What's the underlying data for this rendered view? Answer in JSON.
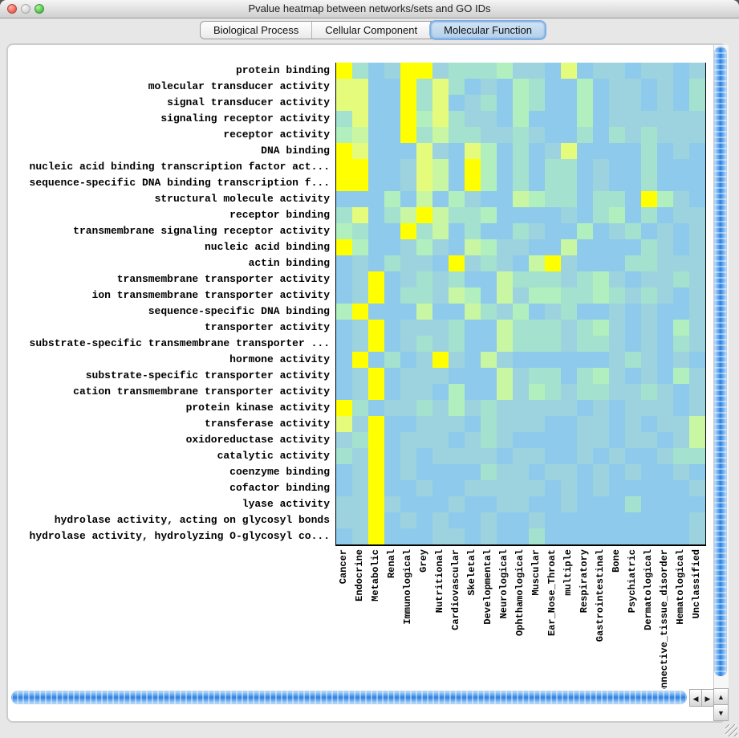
{
  "window": {
    "title": "Pvalue heatmap between networks/sets and GO IDs"
  },
  "tabs": {
    "items": [
      {
        "label": "Biological Process",
        "selected": false
      },
      {
        "label": "Cellular Component",
        "selected": false
      },
      {
        "label": "Molecular Function",
        "selected": true
      }
    ]
  },
  "chart_data": {
    "type": "heatmap",
    "rows": [
      "protein binding",
      "molecular transducer activity",
      "signal transducer activity",
      "signaling receptor activity",
      "receptor activity",
      "DNA binding",
      "nucleic acid binding transcription factor act...",
      "sequence-specific DNA binding transcription f...",
      "structural molecule activity",
      "receptor binding",
      "transmembrane signaling receptor activity",
      "nucleic acid binding",
      "actin binding",
      "transmembrane transporter activity",
      "ion transmembrane transporter activity",
      "sequence-specific DNA binding",
      "transporter activity",
      "substrate-specific transmembrane transporter ...",
      "hormone activity",
      "substrate-specific transporter activity",
      "cation transmembrane transporter activity",
      "protein kinase activity",
      "transferase activity",
      "oxidoreductase activity",
      "catalytic activity",
      "coenzyme binding",
      "cofactor binding",
      "lyase activity",
      "hydrolase activity, acting on glycosyl bonds",
      "hydrolase activity, hydrolyzing O-glycosyl co..."
    ],
    "columns": [
      "Cancer",
      "Endocrine",
      "Metabolic",
      "Renal",
      "Immunological",
      "Grey",
      "Nutritional",
      "Cardiovascular",
      "Skeletal",
      "Developmental",
      "Neurological",
      "Ophthamological",
      "Muscular",
      "Ear_Nose_Throat",
      "multiple",
      "Respiratory",
      "Gastrointestinal",
      "Bone",
      "Psychiatric",
      "Dermatological",
      "Connective_tissue_disorder",
      "Hematological",
      "Unclassified"
    ],
    "palette": [
      "#8ECAEB",
      "#9DD3DF",
      "#A4E1CE",
      "#B2EFBF",
      "#C9F6A3",
      "#E5FB7C",
      "#FFFF00"
    ],
    "palette_note": "color bins read from pixels: 0 = light blue (least significant p-value) through 6 = bright yellow (most significant p-value)",
    "values": [
      [
        6,
        2,
        0,
        1,
        6,
        6,
        1,
        2,
        2,
        2,
        3,
        1,
        1,
        0,
        5,
        0,
        1,
        1,
        0,
        1,
        1,
        0,
        1
      ],
      [
        5,
        5,
        0,
        0,
        6,
        2,
        5,
        2,
        0,
        1,
        0,
        3,
        2,
        0,
        0,
        3,
        0,
        1,
        1,
        0,
        1,
        0,
        2
      ],
      [
        5,
        5,
        0,
        0,
        6,
        2,
        5,
        0,
        1,
        2,
        0,
        3,
        2,
        0,
        0,
        3,
        0,
        1,
        1,
        0,
        1,
        0,
        2
      ],
      [
        2,
        5,
        0,
        0,
        6,
        3,
        5,
        2,
        1,
        1,
        0,
        3,
        0,
        0,
        0,
        3,
        0,
        1,
        1,
        1,
        1,
        1,
        1
      ],
      [
        3,
        4,
        0,
        0,
        6,
        2,
        4,
        2,
        2,
        1,
        1,
        2,
        1,
        0,
        0,
        2,
        0,
        2,
        1,
        2,
        1,
        1,
        1
      ],
      [
        6,
        5,
        0,
        0,
        0,
        5,
        1,
        0,
        5,
        3,
        0,
        2,
        0,
        1,
        5,
        0,
        0,
        0,
        0,
        2,
        0,
        1,
        0
      ],
      [
        6,
        6,
        0,
        0,
        1,
        5,
        4,
        0,
        6,
        3,
        0,
        2,
        0,
        2,
        2,
        0,
        1,
        0,
        0,
        2,
        0,
        0,
        0
      ],
      [
        6,
        6,
        0,
        0,
        1,
        5,
        4,
        0,
        6,
        3,
        0,
        2,
        0,
        2,
        2,
        0,
        1,
        0,
        0,
        2,
        0,
        0,
        0
      ],
      [
        0,
        0,
        0,
        3,
        0,
        4,
        0,
        3,
        1,
        0,
        0,
        4,
        3,
        2,
        2,
        0,
        2,
        2,
        0,
        6,
        3,
        1,
        0
      ],
      [
        2,
        5,
        0,
        2,
        4,
        6,
        4,
        2,
        2,
        3,
        0,
        0,
        0,
        0,
        1,
        0,
        2,
        3,
        0,
        2,
        0,
        1,
        1
      ],
      [
        3,
        2,
        0,
        0,
        6,
        2,
        4,
        0,
        2,
        0,
        0,
        2,
        1,
        0,
        0,
        3,
        0,
        1,
        2,
        0,
        1,
        0,
        1
      ],
      [
        6,
        3,
        0,
        0,
        1,
        3,
        1,
        0,
        4,
        3,
        1,
        1,
        0,
        0,
        4,
        0,
        0,
        0,
        0,
        2,
        1,
        0,
        1
      ],
      [
        0,
        1,
        0,
        2,
        1,
        1,
        0,
        6,
        1,
        2,
        1,
        0,
        4,
        6,
        1,
        0,
        0,
        0,
        2,
        2,
        1,
        1,
        1
      ],
      [
        0,
        1,
        6,
        0,
        1,
        2,
        1,
        2,
        0,
        0,
        4,
        2,
        2,
        2,
        1,
        2,
        3,
        1,
        0,
        1,
        1,
        2,
        1
      ],
      [
        0,
        1,
        6,
        0,
        2,
        2,
        1,
        4,
        3,
        0,
        4,
        1,
        3,
        3,
        2,
        2,
        3,
        2,
        1,
        2,
        1,
        0,
        1
      ],
      [
        3,
        6,
        0,
        0,
        0,
        4,
        0,
        0,
        4,
        2,
        1,
        3,
        0,
        1,
        2,
        0,
        0,
        1,
        0,
        1,
        0,
        0,
        1
      ],
      [
        0,
        1,
        6,
        0,
        1,
        1,
        1,
        2,
        0,
        0,
        4,
        2,
        2,
        2,
        1,
        2,
        3,
        1,
        0,
        1,
        0,
        3,
        1
      ],
      [
        0,
        1,
        6,
        0,
        1,
        2,
        1,
        2,
        0,
        0,
        4,
        2,
        2,
        2,
        1,
        2,
        2,
        1,
        0,
        1,
        0,
        2,
        1
      ],
      [
        0,
        6,
        0,
        2,
        0,
        1,
        6,
        1,
        0,
        4,
        1,
        0,
        0,
        0,
        0,
        0,
        0,
        1,
        2,
        1,
        0,
        1,
        0
      ],
      [
        0,
        1,
        6,
        0,
        1,
        1,
        1,
        0,
        0,
        0,
        4,
        1,
        2,
        2,
        0,
        2,
        3,
        1,
        0,
        1,
        0,
        3,
        1
      ],
      [
        0,
        1,
        6,
        0,
        1,
        1,
        0,
        3,
        0,
        0,
        4,
        1,
        3,
        2,
        1,
        2,
        2,
        1,
        1,
        2,
        1,
        0,
        1
      ],
      [
        6,
        2,
        0,
        1,
        1,
        2,
        1,
        3,
        1,
        2,
        1,
        1,
        1,
        1,
        1,
        0,
        1,
        0,
        1,
        1,
        1,
        0,
        1
      ],
      [
        5,
        1,
        6,
        0,
        0,
        1,
        1,
        1,
        0,
        2,
        1,
        1,
        1,
        0,
        0,
        1,
        1,
        0,
        1,
        0,
        1,
        1,
        4
      ],
      [
        1,
        2,
        6,
        0,
        1,
        1,
        1,
        0,
        1,
        2,
        1,
        0,
        0,
        0,
        0,
        1,
        1,
        0,
        1,
        1,
        0,
        1,
        4
      ],
      [
        2,
        1,
        6,
        0,
        1,
        0,
        1,
        1,
        1,
        1,
        0,
        1,
        1,
        0,
        0,
        1,
        0,
        1,
        0,
        0,
        1,
        2,
        2
      ],
      [
        0,
        1,
        6,
        0,
        1,
        0,
        0,
        0,
        0,
        2,
        1,
        1,
        0,
        1,
        1,
        0,
        1,
        0,
        1,
        0,
        0,
        1,
        0
      ],
      [
        0,
        1,
        6,
        0,
        0,
        1,
        0,
        0,
        1,
        1,
        1,
        1,
        1,
        0,
        1,
        0,
        1,
        0,
        0,
        0,
        0,
        0,
        1
      ],
      [
        1,
        1,
        6,
        1,
        0,
        0,
        0,
        1,
        0,
        0,
        1,
        1,
        0,
        0,
        1,
        0,
        0,
        0,
        2,
        0,
        0,
        0,
        0
      ],
      [
        1,
        1,
        6,
        0,
        1,
        0,
        1,
        0,
        0,
        1,
        0,
        0,
        1,
        0,
        0,
        0,
        0,
        0,
        0,
        0,
        0,
        0,
        1
      ],
      [
        0,
        1,
        6,
        0,
        0,
        0,
        1,
        1,
        0,
        1,
        0,
        0,
        2,
        0,
        0,
        0,
        0,
        0,
        0,
        0,
        0,
        0,
        1
      ]
    ]
  },
  "scrollbars": {
    "up_glyph": "▲",
    "down_glyph": "▼",
    "left_glyph": "◀",
    "right_glyph": "▶"
  }
}
